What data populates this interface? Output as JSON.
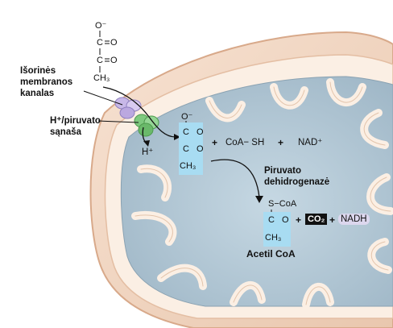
{
  "labels": {
    "outer_membrane_channel": [
      "Išorinės",
      "membranos",
      "kanalas"
    ],
    "transporter": [
      "H⁺/piruvato",
      "sąnaša"
    ],
    "enzyme": [
      "Piruvato",
      "dehidrogenazė"
    ],
    "product_name": "Acetil CoA"
  },
  "molecules": {
    "pyruvate_outside": {
      "o_minus": "O⁻",
      "c1": "C",
      "o1": "O",
      "c2": "C",
      "o2": "O",
      "ch3": "CH₃"
    },
    "pyruvate_inside": {
      "o_minus": "O⁻",
      "c1": "C",
      "o1": "O",
      "c2": "C",
      "o2": "O",
      "ch3": "CH₃"
    },
    "acetyl_coa": {
      "s_coa": "S−CoA",
      "c": "C",
      "o": "O",
      "ch3": "CH₃"
    }
  },
  "reactants": {
    "proton": "H⁺",
    "coash": "CoA− SH",
    "nad": "NAD⁺",
    "plus": "+"
  },
  "products": {
    "co2": "CO₂",
    "nadh": "NADH",
    "plus": "+"
  },
  "colors": {
    "highlight": "#a8dcf2",
    "transporter": "#7fc97f",
    "channel": "#c8b8e8",
    "outer": "#f4d9c4",
    "matrix": "#b9cfdb"
  }
}
